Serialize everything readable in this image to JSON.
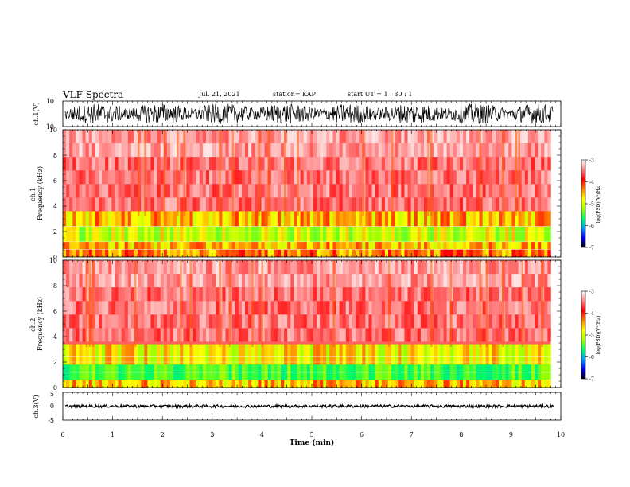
{
  "header": {
    "title": "VLF Spectra",
    "date": "Jul. 21, 2021",
    "station": "station= KAP",
    "start": "start  UT =   1 : 30 : 1"
  },
  "colorbar": {
    "label": "log(PSD)(V²/Hz)",
    "ticks": [
      "-3",
      "-4",
      "-5",
      "-6",
      "-7"
    ],
    "colors": [
      "#000000",
      "#0000ff",
      "#00a0ff",
      "#00ff60",
      "#a0ff00",
      "#ffff00",
      "#ff8000",
      "#ff0000",
      "#ff8080",
      "#ffffff"
    ]
  },
  "chart_data": [
    {
      "type": "line",
      "name": "ch1-waveform",
      "ylabel": "ch.1(V)",
      "ylim": [
        -10,
        10
      ],
      "yticks": [
        "10",
        "-10"
      ],
      "xlim": [
        0,
        10
      ],
      "amplitude_range": [
        -8,
        8
      ]
    },
    {
      "type": "heatmap",
      "name": "ch1-spectrogram",
      "ylabel": "ch.1\nFrequency (kHz)",
      "ylim": [
        0,
        10
      ],
      "yticks": [
        "0",
        "2",
        "4",
        "6",
        "8",
        "10"
      ],
      "xlim": [
        0,
        10
      ],
      "data_end_min": 9.8,
      "bands_khz": [
        [
          0,
          0.6
        ],
        [
          0.6,
          1.2
        ],
        [
          1.2,
          2.4
        ],
        [
          2.4,
          3.6
        ]
      ],
      "band_level": [
        -4.5,
        -4.6,
        -4.8,
        -4.6
      ]
    },
    {
      "type": "heatmap",
      "name": "ch2-spectrogram",
      "ylabel": "ch.2\nFrequency (kHz)",
      "ylim": [
        0,
        10
      ],
      "yticks": [
        "0",
        "2",
        "4",
        "6",
        "8",
        "10"
      ],
      "xlim": [
        0,
        10
      ],
      "data_end_min": 9.8,
      "bands_khz": [
        [
          0,
          0.6
        ],
        [
          0.6,
          1.8
        ],
        [
          1.8,
          3.4
        ]
      ],
      "band_level": [
        -4.6,
        -5.1,
        -4.7
      ]
    },
    {
      "type": "line",
      "name": "ch3-waveform",
      "ylabel": "ch.3(V)",
      "ylim": [
        -5,
        5
      ],
      "yticks": [
        "5",
        "0",
        "-5"
      ],
      "xlim": [
        0,
        10
      ],
      "xlabel": "Time (min)",
      "xticks": [
        "0",
        "1",
        "2",
        "3",
        "4",
        "5",
        "6",
        "7",
        "8",
        "9",
        "10"
      ],
      "amplitude_range": [
        -0.5,
        0.5
      ]
    }
  ]
}
